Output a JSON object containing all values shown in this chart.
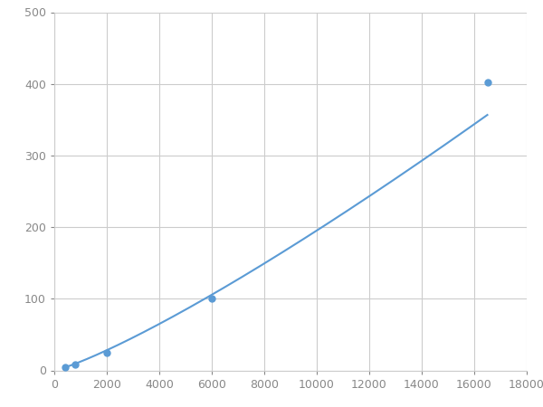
{
  "x_points": [
    400,
    800,
    2000,
    6000,
    16500
  ],
  "y_points": [
    5,
    8,
    25,
    100,
    402
  ],
  "line_color": "#5b9bd5",
  "marker_color": "#5b9bd5",
  "marker_size": 5,
  "line_width": 1.5,
  "xlim": [
    0,
    18000
  ],
  "ylim": [
    0,
    500
  ],
  "xticks": [
    0,
    2000,
    4000,
    6000,
    8000,
    10000,
    12000,
    14000,
    16000,
    18000
  ],
  "yticks": [
    0,
    100,
    200,
    300,
    400,
    500
  ],
  "grid_color": "#cccccc",
  "grid_linewidth": 0.8,
  "background_color": "#ffffff",
  "tick_labelsize": 9,
  "tick_color": "#888888",
  "spine_color": "#cccccc"
}
